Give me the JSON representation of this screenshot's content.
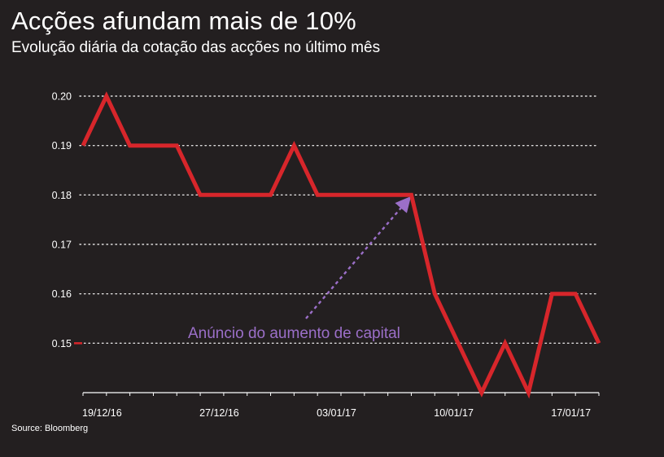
{
  "header": {
    "title": "Acções afundam mais de 10%",
    "subtitle": "Evolução diária da cotação das acções no último mês"
  },
  "footer": {
    "source": "Source: Bloomberg"
  },
  "colors": {
    "background": "#231f20",
    "line": "#d7262b",
    "annotation": "#9b6fc8",
    "grid": "#ffffff",
    "text": "#ffffff"
  },
  "chart_data": {
    "type": "line",
    "title": "Acções afundam mais de 10%",
    "subtitle": "Evolução diária da cotação das acções no último mês",
    "xlabel": "",
    "ylabel": "",
    "ylim": [
      0.14,
      0.2
    ],
    "grid": true,
    "yticks": [
      0.15,
      0.16,
      0.17,
      0.18,
      0.19,
      0.2
    ],
    "ytick_labels": [
      "0.15",
      "0.16",
      "0.17",
      "0.18",
      "0.19",
      "0.20"
    ],
    "xtick_labels": [
      "19/12/16",
      "27/12/16",
      "03/01/17",
      "10/01/17",
      "17/01/17"
    ],
    "xtick_index": [
      0,
      5,
      10,
      15,
      20
    ],
    "series": [
      {
        "values": [
          0.19,
          0.2,
          0.19,
          0.19,
          0.19,
          0.18,
          0.18,
          0.18,
          0.18,
          0.19,
          0.18,
          0.18,
          0.18,
          0.18,
          0.18,
          0.16,
          0.15,
          0.14,
          0.15,
          0.14,
          0.16,
          0.16,
          0.15
        ]
      }
    ],
    "annotations": [
      {
        "text": "Anúncio do aumento de capital",
        "target_index": 14
      }
    ]
  }
}
